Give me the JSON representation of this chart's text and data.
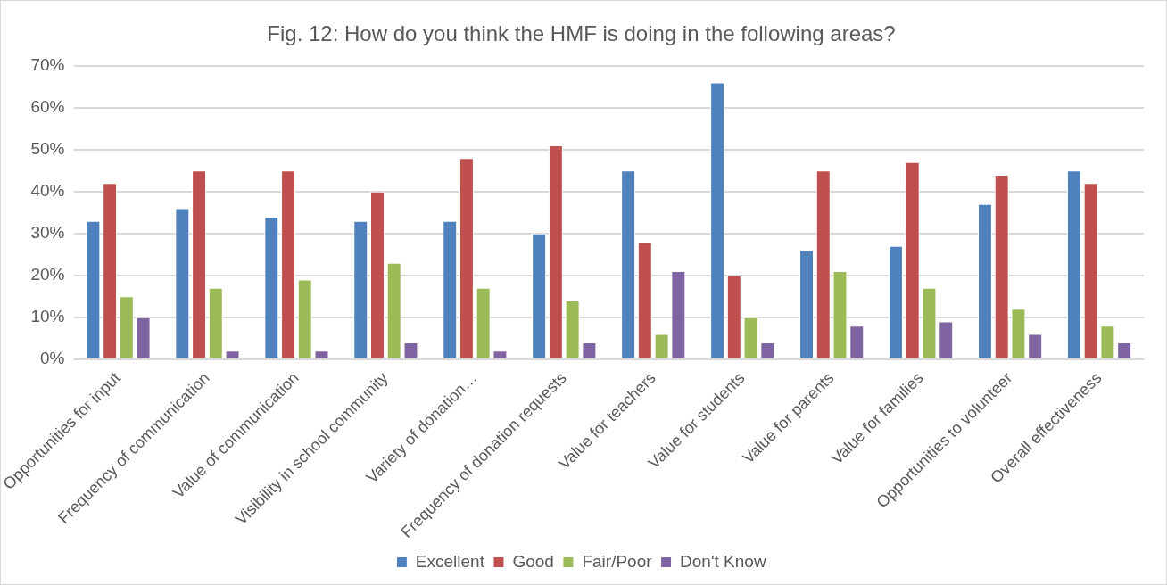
{
  "chart_data": {
    "type": "bar",
    "title": "Fig. 12: How do you think the HMF is doing in the following areas?",
    "categories": [
      "Opportunities for input",
      "Frequency of communication",
      "Value of communication",
      "Visibility in school community",
      "Variety of donation…",
      "Frequency of donation requests",
      "Value for teachers",
      "Value for students",
      "Value for parents",
      "Value for families",
      "Opportunities to volunteer",
      "Overall effectiveness"
    ],
    "series": [
      {
        "name": "Excellent",
        "color": "#4f81bd",
        "values": [
          33,
          36,
          34,
          33,
          33,
          30,
          45,
          66,
          26,
          27,
          37,
          45
        ]
      },
      {
        "name": "Good",
        "color": "#c0504d",
        "values": [
          42,
          45,
          45,
          40,
          48,
          51,
          28,
          20,
          45,
          47,
          44,
          42
        ]
      },
      {
        "name": "Fair/Poor",
        "color": "#9bbb59",
        "values": [
          15,
          17,
          19,
          23,
          17,
          14,
          6,
          10,
          21,
          17,
          12,
          8
        ]
      },
      {
        "name": "Don't Know",
        "color": "#8064a2",
        "values": [
          10,
          2,
          2,
          4,
          2,
          4,
          21,
          4,
          8,
          9,
          6,
          4
        ]
      }
    ],
    "ylim": [
      0,
      70
    ],
    "yticks": [
      {
        "value": 0,
        "label": "0%"
      },
      {
        "value": 10,
        "label": "10%"
      },
      {
        "value": 20,
        "label": "20%"
      },
      {
        "value": 30,
        "label": "30%"
      },
      {
        "value": 40,
        "label": "40%"
      },
      {
        "value": 50,
        "label": "50%"
      },
      {
        "value": 60,
        "label": "60%"
      },
      {
        "value": 70,
        "label": "70%"
      }
    ],
    "grid": "y",
    "legend": "bottom"
  }
}
